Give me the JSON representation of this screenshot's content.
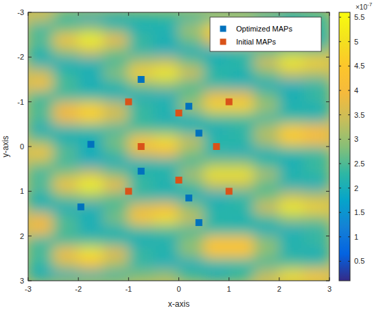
{
  "chart_data": {
    "type": "heatmap",
    "xlabel": "x-axis",
    "ylabel": "y-axis",
    "xlim": [
      -3,
      3
    ],
    "ylim": [
      3,
      -3
    ],
    "xticks": [
      -3,
      -2,
      -1,
      0,
      1,
      2,
      3
    ],
    "yticks": [
      -3,
      -2,
      -1,
      0,
      1,
      2,
      3
    ],
    "legend": "northeast",
    "heatmap": {
      "x": [
        -2.75,
        -2.25,
        -1.75,
        -1.25,
        -0.75,
        -0.25,
        0.25,
        0.75,
        1.25,
        1.75,
        2.25,
        2.75
      ],
      "y": [
        -2.875,
        -2.625,
        -2.375,
        -2.125,
        -1.875,
        -1.625,
        -1.375,
        -1.125,
        -0.875,
        -0.625,
        -0.375,
        -0.125,
        0.125,
        0.375,
        0.625,
        0.875,
        1.125,
        1.375,
        1.625,
        1.875,
        2.125,
        2.375,
        2.625,
        2.875
      ],
      "values": [
        [
          3.4,
          2.3,
          2.0,
          2.0,
          2.2,
          2.3,
          2.3,
          2.5,
          2.5,
          2.2,
          2.0,
          2.3
        ],
        [
          2.3,
          2.7,
          3.0,
          2.5,
          2.1,
          2.1,
          3.1,
          4.8,
          4.8,
          3.1,
          2.2,
          2.4
        ],
        [
          2.6,
          4.4,
          5.5,
          4.0,
          2.4,
          2.1,
          2.7,
          3.8,
          3.8,
          2.7,
          2.0,
          2.0
        ],
        [
          2.2,
          3.0,
          3.5,
          2.8,
          2.2,
          2.0,
          2.0,
          2.1,
          2.2,
          2.5,
          2.9,
          2.8
        ],
        [
          2.1,
          2.0,
          2.1,
          2.4,
          3.2,
          3.4,
          2.7,
          2.1,
          2.3,
          3.6,
          5.3,
          4.7
        ],
        [
          3.4,
          2.3,
          2.1,
          2.9,
          4.7,
          5.3,
          3.6,
          2.3,
          2.1,
          2.7,
          3.4,
          3.2
        ],
        [
          4.2,
          2.5,
          2.0,
          2.2,
          2.8,
          3.0,
          2.5,
          2.2,
          2.1,
          2.0,
          2.0,
          2.2
        ],
        [
          2.4,
          2.3,
          2.3,
          2.1,
          2.0,
          2.0,
          2.7,
          3.8,
          3.8,
          2.7,
          2.1,
          2.4
        ],
        [
          2.5,
          3.9,
          4.7,
          3.5,
          2.4,
          2.2,
          3.1,
          4.8,
          4.8,
          3.1,
          2.1,
          2.1
        ],
        [
          2.5,
          3.9,
          4.7,
          3.5,
          2.3,
          2.0,
          2.1,
          2.5,
          2.5,
          2.3,
          2.3,
          2.2
        ],
        [
          2.0,
          2.2,
          2.3,
          2.3,
          2.5,
          2.5,
          2.2,
          2.0,
          2.2,
          3.2,
          4.6,
          4.1
        ],
        [
          2.7,
          2.1,
          2.0,
          2.8,
          4.5,
          5.0,
          3.4,
          2.3,
          2.3,
          3.2,
          4.6,
          4.1
        ],
        [
          4.4,
          2.6,
          2.0,
          2.5,
          3.7,
          4.0,
          2.9,
          2.1,
          2.0,
          2.1,
          2.3,
          2.3
        ],
        [
          3.0,
          2.3,
          2.0,
          2.0,
          2.1,
          2.2,
          2.4,
          2.9,
          2.9,
          2.3,
          2.0,
          2.4
        ],
        [
          2.3,
          3.0,
          3.5,
          2.8,
          2.2,
          2.2,
          3.2,
          5.1,
          5.1,
          3.2,
          2.2,
          2.3
        ],
        [
          2.6,
          4.4,
          5.5,
          4.0,
          2.4,
          2.1,
          2.5,
          3.3,
          3.3,
          2.5,
          2.1,
          2.0
        ],
        [
          2.1,
          2.7,
          3.0,
          2.6,
          2.2,
          2.2,
          2.0,
          2.0,
          2.2,
          2.7,
          3.4,
          3.2
        ],
        [
          2.2,
          2.0,
          2.0,
          2.5,
          3.7,
          4.0,
          2.9,
          2.2,
          2.3,
          3.6,
          5.3,
          4.7
        ],
        [
          3.9,
          2.5,
          2.1,
          2.8,
          4.5,
          5.0,
          3.4,
          2.2,
          2.1,
          2.4,
          2.9,
          2.8
        ],
        [
          3.9,
          2.5,
          2.0,
          2.1,
          2.4,
          2.5,
          2.4,
          2.3,
          2.3,
          2.0,
          2.0,
          2.2
        ],
        [
          2.3,
          2.4,
          2.5,
          2.3,
          2.0,
          2.1,
          2.9,
          4.4,
          4.4,
          2.9,
          2.2,
          2.4
        ],
        [
          2.5,
          4.2,
          5.2,
          3.8,
          2.4,
          2.2,
          2.9,
          4.4,
          4.4,
          2.9,
          2.1,
          2.0
        ],
        [
          2.3,
          3.4,
          4.1,
          3.2,
          2.2,
          2.0,
          2.0,
          2.3,
          2.3,
          2.4,
          2.5,
          2.4
        ],
        [
          2.0,
          2.1,
          2.2,
          2.3,
          2.8,
          3.0,
          2.4,
          2.0,
          2.3,
          3.4,
          5.0,
          4.5
        ]
      ]
    },
    "colorbar": {
      "lim": [
        0.1,
        5.6
      ],
      "ticks": [
        0.5,
        1,
        1.5,
        2,
        2.5,
        3,
        3.5,
        4,
        4.5,
        5,
        5.5
      ],
      "multiplier": "×10",
      "exponent": "-7"
    },
    "series": [
      {
        "name": "Optimized MAPs",
        "type": "scatter",
        "marker": "square",
        "color": "#0072bd",
        "x": [
          -0.75,
          0.2,
          0.4,
          -1.75,
          -0.75,
          0.2,
          -1.95,
          0.4
        ],
        "values": [
          -1.5,
          -0.9,
          -0.3,
          -0.05,
          0.55,
          1.15,
          1.35,
          1.7
        ]
      },
      {
        "name": "Initial MAPs",
        "type": "scatter",
        "marker": "square",
        "color": "#d95319",
        "x": [
          -1,
          0,
          1,
          -0.75,
          0.75,
          0,
          -1,
          1
        ],
        "values": [
          -1,
          -0.75,
          -1,
          0,
          0,
          0.75,
          1,
          1
        ]
      }
    ]
  }
}
